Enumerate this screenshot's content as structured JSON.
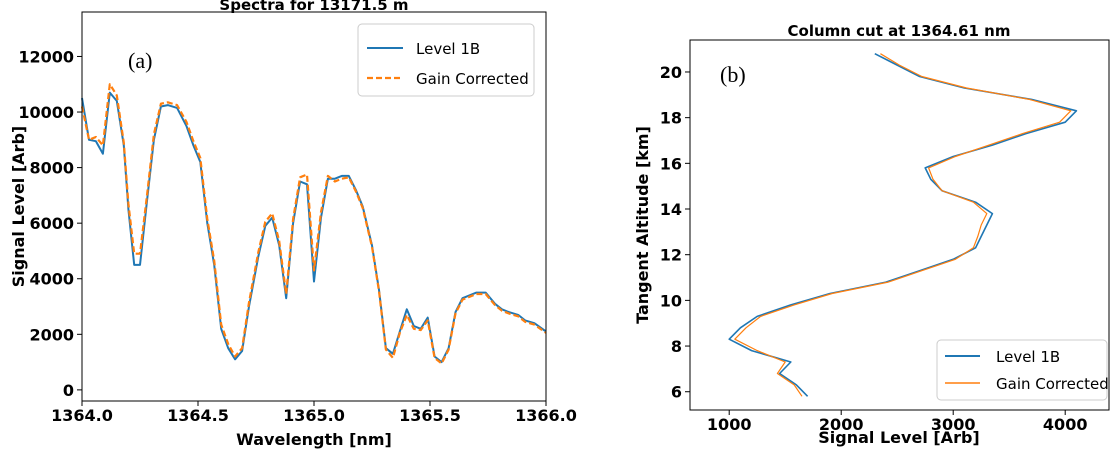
{
  "chart_data": [
    {
      "type": "line",
      "title": "Spectra for 13171.5 m",
      "panel_label": "(a)",
      "xlabel": "Wavelength [nm]",
      "ylabel": "Signal Level [Arb]",
      "xlim": [
        1364.0,
        1366.0
      ],
      "ylim": [
        -400,
        13600
      ],
      "x_ticks": [
        1364.0,
        1364.5,
        1365.0,
        1365.5,
        1366.0
      ],
      "x_tick_labels": [
        "1364.0",
        "1364.5",
        "1365.0",
        "1365.5",
        "1366.0"
      ],
      "y_ticks": [
        0,
        2000,
        4000,
        6000,
        8000,
        10000,
        12000
      ],
      "y_tick_labels": [
        "0",
        "2000",
        "4000",
        "6000",
        "8000",
        "10000",
        "12000"
      ],
      "legend_position": "top-right",
      "x": [
        1364.0,
        1364.03,
        1364.06,
        1364.09,
        1364.12,
        1364.15,
        1364.18,
        1364.2,
        1364.225,
        1364.25,
        1364.28,
        1364.31,
        1364.34,
        1364.37,
        1364.41,
        1364.45,
        1364.48,
        1364.51,
        1364.54,
        1364.57,
        1364.6,
        1364.63,
        1364.66,
        1364.69,
        1364.72,
        1364.76,
        1364.79,
        1364.82,
        1364.85,
        1364.88,
        1364.91,
        1364.94,
        1364.97,
        1365.0,
        1365.03,
        1365.06,
        1365.09,
        1365.12,
        1365.15,
        1365.18,
        1365.21,
        1365.25,
        1365.28,
        1365.31,
        1365.34,
        1365.37,
        1365.4,
        1365.43,
        1365.46,
        1365.49,
        1365.52,
        1365.55,
        1365.58,
        1365.61,
        1365.64,
        1365.67,
        1365.7,
        1365.74,
        1365.78,
        1365.81,
        1365.84,
        1365.88,
        1365.91,
        1365.95,
        1366.0
      ],
      "series": [
        {
          "name": "Level 1B",
          "color": "#1f77b4",
          "values": [
            10500,
            9000,
            8950,
            8500,
            10700,
            10400,
            8800,
            6500,
            4500,
            4500,
            6800,
            9000,
            10200,
            10250,
            10150,
            9500,
            8800,
            8200,
            6000,
            4500,
            2200,
            1500,
            1100,
            1400,
            3000,
            4800,
            5900,
            6200,
            5200,
            3300,
            6000,
            7500,
            7400,
            3900,
            6200,
            7600,
            7600,
            7700,
            7700,
            7200,
            6600,
            5200,
            3600,
            1500,
            1300,
            2100,
            2900,
            2300,
            2200,
            2600,
            1200,
            1000,
            1500,
            2800,
            3300,
            3400,
            3500,
            3500,
            3100,
            2900,
            2800,
            2700,
            2500,
            2400,
            2100
          ]
        },
        {
          "name": "Gain Corrected",
          "color": "#ff7f0e",
          "values": [
            10200,
            9000,
            9100,
            8800,
            11000,
            10600,
            8900,
            6700,
            4900,
            4900,
            7000,
            9200,
            10300,
            10350,
            10250,
            9650,
            8950,
            8350,
            6150,
            4650,
            2350,
            1650,
            1200,
            1500,
            3150,
            4950,
            6050,
            6350,
            5350,
            3450,
            6150,
            7650,
            7750,
            4300,
            6400,
            7700,
            7500,
            7600,
            7650,
            7150,
            6550,
            5150,
            3550,
            1450,
            1150,
            2050,
            2700,
            2200,
            2150,
            2500,
            1150,
            950,
            1450,
            2750,
            3250,
            3350,
            3450,
            3450,
            3050,
            2850,
            2750,
            2650,
            2450,
            2350,
            2050
          ]
        }
      ]
    },
    {
      "type": "line",
      "title": "Column cut at 1364.61 nm",
      "panel_label": "(b)",
      "xlabel": "Signal Level [Arb]",
      "ylabel": "Tangent Altitude [km]",
      "xlim": [
        650,
        4400
      ],
      "ylim": [
        5.2,
        21.4
      ],
      "x_ticks": [
        1000,
        2000,
        3000,
        4000
      ],
      "x_tick_labels": [
        "1000",
        "2000",
        "3000",
        "4000"
      ],
      "y_ticks": [
        6,
        8,
        10,
        12,
        14,
        16,
        18,
        20
      ],
      "y_tick_labels": [
        "6",
        "8",
        "10",
        "12",
        "14",
        "16",
        "18",
        "20"
      ],
      "legend_position": "bottom-right",
      "altitude": [
        5.8,
        6.3,
        6.8,
        7.3,
        7.8,
        8.3,
        8.8,
        9.3,
        9.8,
        10.3,
        10.8,
        11.3,
        11.8,
        12.3,
        12.8,
        13.3,
        13.8,
        14.3,
        14.8,
        15.3,
        15.8,
        16.3,
        16.8,
        17.3,
        17.8,
        18.3,
        18.8,
        19.3,
        19.8,
        20.3,
        20.8
      ],
      "series": [
        {
          "name": "Level 1B",
          "color": "#1f77b4",
          "signal": [
            1700,
            1600,
            1450,
            1550,
            1200,
            1000,
            1100,
            1250,
            1550,
            1900,
            2400,
            2700,
            3000,
            3200,
            3250,
            3300,
            3350,
            3200,
            2900,
            2800,
            2750,
            3000,
            3350,
            3650,
            4000,
            4100,
            3700,
            3100,
            2700,
            2500,
            2300
          ]
        },
        {
          "name": "Gain Corrected",
          "color": "#ff7f0e",
          "signal": [
            1650,
            1580,
            1430,
            1500,
            1250,
            1050,
            1150,
            1280,
            1580,
            1920,
            2420,
            2720,
            3020,
            3180,
            3220,
            3250,
            3300,
            3180,
            2900,
            2820,
            2780,
            3020,
            3320,
            3620,
            3950,
            4050,
            3680,
            3120,
            2720,
            2520,
            2350
          ]
        }
      ]
    }
  ]
}
